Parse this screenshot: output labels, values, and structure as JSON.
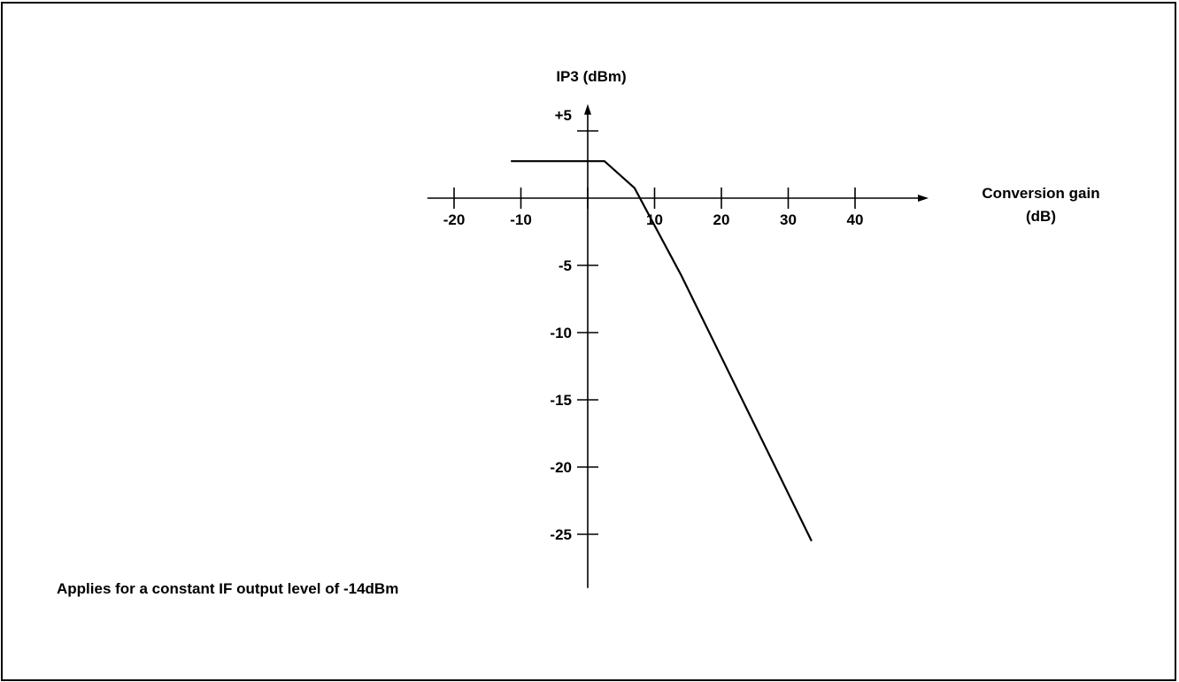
{
  "chart_data": {
    "type": "line",
    "title": "",
    "xlabel_line1": "Conversion gain",
    "xlabel_line2": "(dB)",
    "ylabel": "IP3 (dBm)",
    "xlim": [
      -24,
      51
    ],
    "ylim": [
      -29,
      7
    ],
    "x_ticks": [
      {
        "value": -20,
        "label": "-20"
      },
      {
        "value": -10,
        "label": "-10"
      },
      {
        "value": 0,
        "label": ""
      },
      {
        "value": 10,
        "label": "10"
      },
      {
        "value": 20,
        "label": "20"
      },
      {
        "value": 30,
        "label": "30"
      },
      {
        "value": 40,
        "label": "40"
      }
    ],
    "y_ticks": [
      {
        "value": 5,
        "label": "+5"
      },
      {
        "value": -5,
        "label": "-5"
      },
      {
        "value": -10,
        "label": "-10"
      },
      {
        "value": -15,
        "label": "-15"
      },
      {
        "value": -20,
        "label": "-20"
      },
      {
        "value": -25,
        "label": "-25"
      }
    ],
    "series": [
      {
        "x": [
          -11.5,
          2.5,
          7,
          14,
          33.5
        ],
        "y": [
          2.75,
          2.75,
          0.75,
          -5.75,
          -25.5
        ]
      }
    ],
    "grid": false,
    "legend": "none",
    "line_color": "#000000"
  },
  "annotation": "Applies for a constant IF output level of -14dBm"
}
